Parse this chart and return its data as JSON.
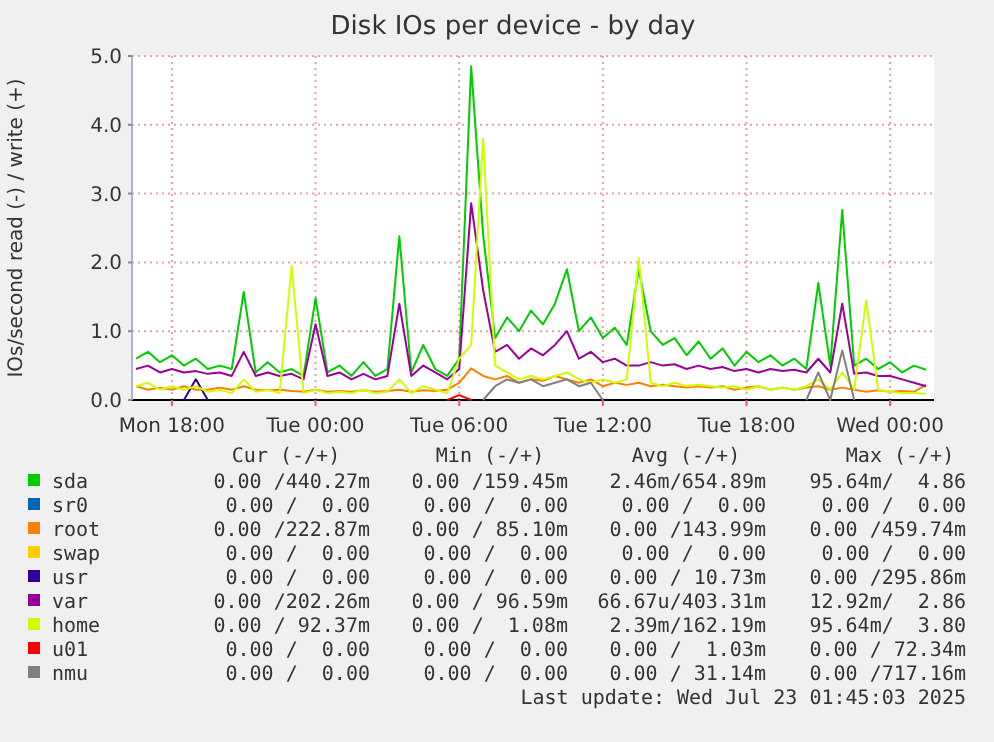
{
  "chart_data": {
    "type": "line",
    "title": "Disk IOs per device - by day",
    "ylabel": "IOs/second read (-) / write (+)",
    "x": [
      "2025-07-21T16:30",
      "2025-07-21T17:00",
      "2025-07-21T17:30",
      "2025-07-21T18:00",
      "2025-07-21T18:30",
      "2025-07-21T19:00",
      "2025-07-21T19:30",
      "2025-07-21T20:00",
      "2025-07-21T20:30",
      "2025-07-21T21:00",
      "2025-07-21T21:30",
      "2025-07-21T22:00",
      "2025-07-21T22:30",
      "2025-07-21T23:00",
      "2025-07-21T23:30",
      "2025-07-22T00:00",
      "2025-07-22T00:30",
      "2025-07-22T01:00",
      "2025-07-22T01:30",
      "2025-07-22T02:00",
      "2025-07-22T02:30",
      "2025-07-22T03:00",
      "2025-07-22T03:30",
      "2025-07-22T04:00",
      "2025-07-22T04:30",
      "2025-07-22T05:00",
      "2025-07-22T05:30",
      "2025-07-22T06:00",
      "2025-07-22T06:30",
      "2025-07-22T07:00",
      "2025-07-22T07:30",
      "2025-07-22T08:00",
      "2025-07-22T08:30",
      "2025-07-22T09:00",
      "2025-07-22T09:30",
      "2025-07-22T10:00",
      "2025-07-22T10:30",
      "2025-07-22T11:00",
      "2025-07-22T11:30",
      "2025-07-22T12:00",
      "2025-07-22T12:30",
      "2025-07-22T13:00",
      "2025-07-22T13:30",
      "2025-07-22T14:00",
      "2025-07-22T14:30",
      "2025-07-22T15:00",
      "2025-07-22T15:30",
      "2025-07-22T16:00",
      "2025-07-22T16:30",
      "2025-07-22T17:00",
      "2025-07-22T17:30",
      "2025-07-22T18:00",
      "2025-07-22T18:30",
      "2025-07-22T19:00",
      "2025-07-22T19:30",
      "2025-07-22T20:00",
      "2025-07-22T20:30",
      "2025-07-22T21:00",
      "2025-07-22T21:30",
      "2025-07-22T22:00",
      "2025-07-22T22:30",
      "2025-07-22T23:00",
      "2025-07-22T23:30",
      "2025-07-23T00:00",
      "2025-07-23T00:30",
      "2025-07-23T01:00",
      "2025-07-23T01:30"
    ],
    "series": [
      {
        "name": "sda",
        "color": "#00cc00",
        "values": [
          0.6,
          0.7,
          0.55,
          0.65,
          0.5,
          0.6,
          0.45,
          0.5,
          0.45,
          1.57,
          0.4,
          0.55,
          0.4,
          0.45,
          0.35,
          1.48,
          0.4,
          0.5,
          0.35,
          0.55,
          0.35,
          0.45,
          2.38,
          0.4,
          0.8,
          0.45,
          0.35,
          0.6,
          4.85,
          2.4,
          0.9,
          1.2,
          1.0,
          1.3,
          1.1,
          1.4,
          1.9,
          1.0,
          1.2,
          0.9,
          1.05,
          0.8,
          1.9,
          1.0,
          0.8,
          0.9,
          0.65,
          0.85,
          0.6,
          0.75,
          0.5,
          0.7,
          0.55,
          0.65,
          0.5,
          0.6,
          0.45,
          1.7,
          0.5,
          2.76,
          0.5,
          0.6,
          0.45,
          0.55,
          0.4,
          0.5,
          0.44
        ]
      },
      {
        "name": "sr0",
        "color": "#0066b3",
        "values": [
          null,
          null,
          null,
          null,
          null,
          null,
          null,
          null,
          null,
          null,
          null,
          null,
          null,
          null,
          null,
          null,
          null,
          null,
          null,
          null,
          null,
          null,
          null,
          null,
          null,
          null,
          null,
          null,
          null,
          null,
          null,
          null,
          null,
          null,
          null,
          null,
          null,
          null,
          null,
          null,
          null,
          null,
          null,
          null,
          null,
          null,
          null,
          null,
          null,
          null,
          null,
          null,
          null,
          null,
          null,
          null,
          null,
          null,
          null,
          null,
          null,
          null,
          null,
          null,
          null,
          null,
          null
        ]
      },
      {
        "name": "root",
        "color": "#ff8000",
        "values": [
          0.2,
          0.15,
          0.18,
          0.15,
          0.2,
          0.15,
          0.15,
          0.18,
          0.15,
          0.2,
          0.15,
          0.14,
          0.15,
          0.13,
          0.12,
          0.15,
          0.12,
          0.13,
          0.12,
          0.14,
          0.12,
          0.13,
          0.15,
          0.12,
          0.14,
          0.13,
          0.15,
          0.25,
          0.46,
          0.35,
          0.3,
          0.35,
          0.25,
          0.3,
          0.28,
          0.35,
          0.3,
          0.25,
          0.3,
          0.2,
          0.25,
          0.22,
          0.25,
          0.2,
          0.22,
          0.2,
          0.18,
          0.2,
          0.18,
          0.2,
          0.15,
          0.18,
          0.2,
          0.15,
          0.18,
          0.15,
          0.18,
          0.2,
          0.15,
          0.18,
          0.15,
          0.12,
          0.14,
          0.12,
          0.13,
          0.12,
          0.22
        ]
      },
      {
        "name": "swap",
        "color": "#ffcc00",
        "values": [
          null,
          null,
          null,
          null,
          null,
          null,
          null,
          null,
          null,
          null,
          null,
          null,
          null,
          null,
          null,
          null,
          null,
          null,
          null,
          null,
          null,
          null,
          null,
          null,
          null,
          null,
          null,
          null,
          null,
          null,
          null,
          null,
          null,
          null,
          null,
          null,
          null,
          null,
          null,
          null,
          null,
          null,
          null,
          null,
          null,
          null,
          null,
          null,
          null,
          null,
          null,
          null,
          null,
          null,
          null,
          null,
          null,
          null,
          null,
          null,
          null,
          null,
          null,
          null,
          null,
          null,
          null
        ]
      },
      {
        "name": "usr",
        "color": "#330099",
        "values": [
          null,
          null,
          null,
          null,
          0,
          0.3,
          0,
          null,
          null,
          null,
          null,
          null,
          null,
          null,
          null,
          null,
          null,
          null,
          null,
          null,
          null,
          null,
          null,
          null,
          null,
          null,
          null,
          null,
          null,
          null,
          null,
          null,
          null,
          null,
          null,
          null,
          null,
          null,
          null,
          null,
          null,
          null,
          null,
          null,
          null,
          null,
          null,
          null,
          null,
          null,
          null,
          null,
          null,
          null,
          null,
          null,
          null,
          null,
          null,
          null,
          null,
          null,
          null,
          null,
          null,
          null,
          null
        ]
      },
      {
        "name": "var",
        "color": "#990099",
        "values": [
          0.45,
          0.5,
          0.4,
          0.45,
          0.4,
          0.42,
          0.38,
          0.4,
          0.35,
          0.7,
          0.35,
          0.4,
          0.35,
          0.38,
          0.3,
          1.1,
          0.35,
          0.4,
          0.3,
          0.38,
          0.3,
          0.35,
          1.4,
          0.35,
          0.5,
          0.4,
          0.3,
          0.45,
          2.86,
          1.6,
          0.7,
          0.8,
          0.6,
          0.75,
          0.65,
          0.8,
          1.0,
          0.6,
          0.7,
          0.55,
          0.6,
          0.5,
          0.5,
          0.55,
          0.5,
          0.52,
          0.45,
          0.5,
          0.45,
          0.48,
          0.42,
          0.45,
          0.4,
          0.45,
          0.42,
          0.44,
          0.4,
          0.6,
          0.4,
          1.4,
          0.38,
          0.4,
          0.35,
          0.35,
          0.3,
          0.25,
          0.2
        ]
      },
      {
        "name": "home",
        "color": "#ccff00",
        "values": [
          0.2,
          0.25,
          0.15,
          0.2,
          0.15,
          0.2,
          0.12,
          0.15,
          0.1,
          0.3,
          0.12,
          0.15,
          0.1,
          1.95,
          0.1,
          0.15,
          0.1,
          0.12,
          0.1,
          0.15,
          0.1,
          0.12,
          0.3,
          0.1,
          0.2,
          0.15,
          0.1,
          0.6,
          0.8,
          3.8,
          0.5,
          0.4,
          0.3,
          0.35,
          0.3,
          0.35,
          0.4,
          0.3,
          0.25,
          0.3,
          0.25,
          0.3,
          2.06,
          0.25,
          0.2,
          0.25,
          0.2,
          0.22,
          0.2,
          0.18,
          0.2,
          0.15,
          0.2,
          0.15,
          0.18,
          0.15,
          0.2,
          0.3,
          0.15,
          0.4,
          0.15,
          1.45,
          0.15,
          0.12,
          0.1,
          0.1,
          0.09
        ]
      },
      {
        "name": "u01",
        "color": "#ff0000",
        "values": [
          null,
          null,
          null,
          null,
          null,
          null,
          null,
          null,
          null,
          null,
          null,
          null,
          null,
          null,
          null,
          null,
          null,
          null,
          null,
          null,
          null,
          null,
          null,
          null,
          null,
          null,
          0,
          0.07,
          0,
          null,
          null,
          null,
          null,
          null,
          null,
          null,
          null,
          null,
          null,
          null,
          null,
          null,
          null,
          null,
          null,
          null,
          null,
          null,
          null,
          null,
          null,
          null,
          null,
          null,
          null,
          null,
          null,
          null,
          null,
          null,
          null,
          null,
          null,
          null,
          null,
          null,
          null
        ]
      },
      {
        "name": "nmu",
        "color": "#808080",
        "values": [
          null,
          null,
          null,
          null,
          null,
          null,
          null,
          null,
          null,
          null,
          null,
          null,
          null,
          null,
          null,
          null,
          null,
          null,
          null,
          null,
          null,
          null,
          null,
          null,
          null,
          null,
          null,
          null,
          null,
          0,
          0.2,
          0.3,
          0.25,
          0.3,
          0.2,
          0.25,
          0.3,
          0.2,
          0.25,
          0,
          null,
          null,
          null,
          null,
          null,
          null,
          null,
          null,
          null,
          null,
          null,
          null,
          null,
          null,
          null,
          null,
          0,
          0.4,
          0,
          0.72,
          0,
          null,
          null,
          null,
          null,
          null,
          null
        ]
      }
    ],
    "xlim": [
      "2025-07-21T16:20",
      "2025-07-23T01:50"
    ],
    "xticks": [
      {
        "value": "2025-07-21T18:00",
        "label": "Mon 18:00"
      },
      {
        "value": "2025-07-22T00:00",
        "label": "Tue 00:00"
      },
      {
        "value": "2025-07-22T06:00",
        "label": "Tue 06:00"
      },
      {
        "value": "2025-07-22T12:00",
        "label": "Tue 12:00"
      },
      {
        "value": "2025-07-22T18:00",
        "label": "Tue 18:00"
      },
      {
        "value": "2025-07-23T00:00",
        "label": "Wed 00:00"
      }
    ],
    "ylim": [
      0,
      5
    ],
    "yticks": [
      {
        "value": 0,
        "label": "0.0"
      },
      {
        "value": 1,
        "label": "1.0"
      },
      {
        "value": 2,
        "label": "2.0"
      },
      {
        "value": 3,
        "label": "3.0"
      },
      {
        "value": 4,
        "label": "4.0"
      },
      {
        "value": 5,
        "label": "5.0"
      }
    ],
    "grid": true,
    "legend": "bottom",
    "annotations": [
      "Cur (-/+)",
      "Min (-/+)",
      "Avg (-/+)",
      "Max (-/+)",
      "0.00 /440.27m",
      "0.00 /159.45m",
      "2.46m/654.89m",
      "95.64m/  4.86",
      "0.00 /  0.00",
      "0.00 /  0.00",
      "0.00 /  0.00",
      "0.00 /  0.00",
      "0.00 /222.87m",
      "0.00 / 85.10m",
      "0.00 /143.99m",
      "0.00 /459.74m",
      "0.00 /  0.00",
      "0.00 /  0.00",
      "0.00 /  0.00",
      "0.00 /  0.00",
      "0.00 /  0.00",
      "0.00 /  0.00",
      "0.00 / 10.73m",
      "0.00 /295.86m",
      "0.00 /202.26m",
      "0.00 / 96.59m",
      "66.67u/403.31m",
      "12.92m/  2.86",
      "0.00 / 92.37m",
      "0.00 /  1.08m",
      "2.39m/162.19m",
      "95.64m/  3.80",
      "0.00 /  0.00",
      "0.00 /  0.00",
      "0.00 /  1.03m",
      "0.00 / 72.34m",
      "0.00 /  0.00",
      "0.00 /  0.00",
      "0.00 / 31.14m",
      "0.00 /717.16m",
      "Last update: Wed Jul 23 01:45:03 2025"
    ]
  }
}
